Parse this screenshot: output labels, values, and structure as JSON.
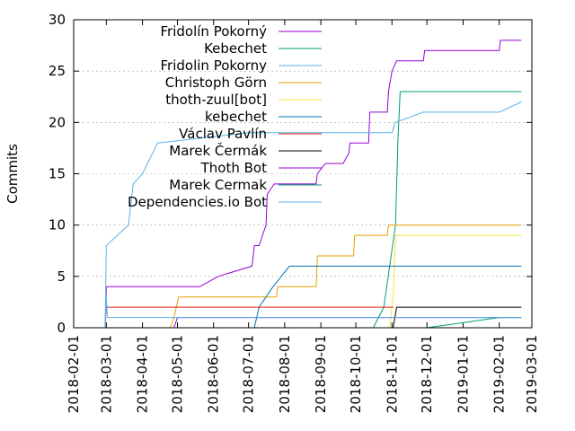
{
  "chart_data": {
    "type": "line",
    "title": "",
    "xlabel": "",
    "ylabel": "Commits",
    "ylim": [
      0,
      30
    ],
    "yticks": [
      "0",
      "5",
      "10",
      "15",
      "20",
      "25",
      "30"
    ],
    "xlim": [
      "2018-02-01",
      "2019-03-01"
    ],
    "xticks": [
      "2018-02-01",
      "2018-03-01",
      "2018-04-01",
      "2018-05-01",
      "2018-06-01",
      "2018-07-01",
      "2018-08-01",
      "2018-09-01",
      "2018-10-01",
      "2018-11-01",
      "2018-12-01",
      "2019-01-01",
      "2019-02-01",
      "2019-03-01"
    ],
    "grid": "horizontal",
    "legend_position": "top-left",
    "series": [
      {
        "name": "Fridolín Pokorný",
        "color": "#9400d3",
        "points": [
          [
            "2018-02-28",
            0
          ],
          [
            "2018-03-01",
            4
          ],
          [
            "2018-05-20",
            4
          ],
          [
            "2018-06-05",
            5
          ],
          [
            "2018-07-04",
            6
          ],
          [
            "2018-07-05",
            7
          ],
          [
            "2018-07-06",
            8
          ],
          [
            "2018-07-10",
            8
          ],
          [
            "2018-07-13",
            9
          ],
          [
            "2018-07-16",
            10
          ],
          [
            "2018-07-17",
            13
          ],
          [
            "2018-07-23",
            14
          ],
          [
            "2018-08-28",
            14
          ],
          [
            "2018-08-29",
            15
          ],
          [
            "2018-09-05",
            16
          ],
          [
            "2018-09-20",
            16
          ],
          [
            "2018-09-25",
            17
          ],
          [
            "2018-09-26",
            18
          ],
          [
            "2018-10-12",
            18
          ],
          [
            "2018-10-13",
            21
          ],
          [
            "2018-10-28",
            21
          ],
          [
            "2018-10-29",
            23
          ],
          [
            "2018-11-01",
            25
          ],
          [
            "2018-11-05",
            26
          ],
          [
            "2018-11-28",
            26
          ],
          [
            "2018-11-29",
            27
          ],
          [
            "2019-02-01",
            27
          ],
          [
            "2019-02-02",
            28
          ],
          [
            "2019-02-20",
            28
          ]
        ]
      },
      {
        "name": "Kebechet",
        "color": "#009e73",
        "points": [
          [
            "2018-10-16",
            0
          ],
          [
            "2018-10-25",
            2
          ],
          [
            "2018-11-04",
            10
          ],
          [
            "2018-11-06",
            18
          ],
          [
            "2018-11-08",
            23
          ],
          [
            "2019-02-20",
            23
          ]
        ]
      },
      {
        "name": "Fridolin Pokorny",
        "color": "#56b4e9",
        "points": [
          [
            "2018-02-28",
            0
          ],
          [
            "2018-03-01",
            8
          ],
          [
            "2018-03-20",
            10
          ],
          [
            "2018-03-24",
            14
          ],
          [
            "2018-04-01",
            15
          ],
          [
            "2018-04-14",
            18
          ],
          [
            "2018-07-01",
            19
          ],
          [
            "2018-11-01",
            19
          ],
          [
            "2018-11-04",
            20
          ],
          [
            "2018-11-28",
            21
          ],
          [
            "2019-02-01",
            21
          ],
          [
            "2019-02-20",
            22
          ]
        ]
      },
      {
        "name": "Christoph Görn",
        "color": "#e69f00",
        "points": [
          [
            "2018-04-25",
            0
          ],
          [
            "2018-04-28",
            1
          ],
          [
            "2018-05-02",
            3
          ],
          [
            "2018-07-25",
            3
          ],
          [
            "2018-07-26",
            4
          ],
          [
            "2018-08-28",
            4
          ],
          [
            "2018-08-29",
            7
          ],
          [
            "2018-09-29",
            7
          ],
          [
            "2018-09-30",
            9
          ],
          [
            "2018-10-28",
            9
          ],
          [
            "2018-10-29",
            10
          ],
          [
            "2019-02-20",
            10
          ]
        ]
      },
      {
        "name": "thoth-zuul[bot]",
        "color": "#f0e442",
        "points": [
          [
            "2018-10-30",
            0
          ],
          [
            "2018-11-02",
            3
          ],
          [
            "2018-11-04",
            9
          ],
          [
            "2019-02-20",
            9
          ]
        ]
      },
      {
        "name": "kebechet",
        "color": "#0072b2",
        "points": [
          [
            "2018-07-06",
            0
          ],
          [
            "2018-07-10",
            2
          ],
          [
            "2018-07-22",
            4
          ],
          [
            "2018-08-05",
            6
          ],
          [
            "2019-02-20",
            6
          ]
        ]
      },
      {
        "name": "Václav Pavlín",
        "color": "#e51e10",
        "points": [
          [
            "2018-02-28",
            0
          ],
          [
            "2018-03-01",
            2
          ],
          [
            "2018-11-02",
            2
          ]
        ]
      },
      {
        "name": "Marek Čermák",
        "color": "#000000",
        "points": [
          [
            "2018-11-02",
            0
          ],
          [
            "2018-11-05",
            2
          ],
          [
            "2019-02-20",
            2
          ]
        ]
      },
      {
        "name": "Thoth Bot",
        "color": "#9400d3",
        "points": [
          [
            "2018-04-28",
            0
          ],
          [
            "2018-05-01",
            1
          ],
          [
            "2019-02-20",
            1
          ]
        ]
      },
      {
        "name": "Marek Cermak",
        "color": "#009e73",
        "points": [
          [
            "2018-12-01",
            0
          ],
          [
            "2019-02-01",
            1
          ],
          [
            "2019-02-20",
            1
          ]
        ]
      },
      {
        "name": "Dependencies.io Bot",
        "color": "#56b4e9",
        "points": [
          [
            "2018-02-28",
            0
          ],
          [
            "2018-03-01",
            3
          ],
          [
            "2018-03-02",
            1
          ],
          [
            "2018-08-05",
            1
          ],
          [
            "2018-08-10",
            1
          ],
          [
            "2019-02-20",
            1
          ]
        ]
      }
    ]
  }
}
